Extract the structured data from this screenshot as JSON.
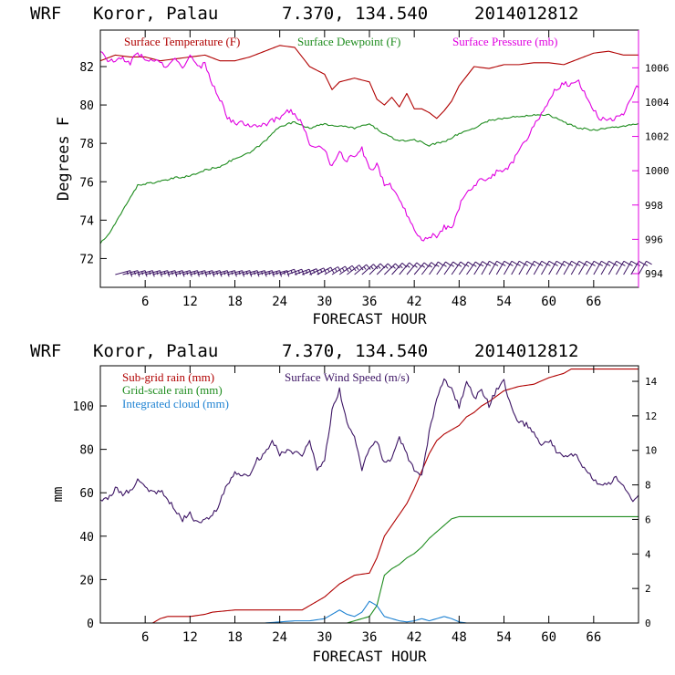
{
  "page": {
    "panel1_header": {
      "model": "WRF",
      "location": "Koror, Palau",
      "coords": "7.370, 134.540",
      "run": "2014012812"
    },
    "panel2_header": {
      "model": "WRF",
      "location": "Koror, Palau",
      "coords": "7.370, 134.540",
      "run": "2014012812"
    }
  },
  "chart_data": [
    {
      "type": "line",
      "xlabel": "FORECAST HOUR",
      "ylabel": "Degrees F",
      "xlim": [
        0,
        72
      ],
      "ylim": [
        70.5,
        83.9
      ],
      "y2lim": [
        993.2,
        1008.2
      ],
      "xticks": [
        6,
        12,
        18,
        24,
        30,
        36,
        42,
        48,
        54,
        60,
        66
      ],
      "xticklabels": [
        "6",
        "12",
        "18",
        "24",
        "30",
        "36",
        "42",
        "48",
        "54",
        "60",
        "66"
      ],
      "yticks": [
        72,
        74,
        76,
        78,
        80,
        82
      ],
      "yticklabels": [
        "72",
        "74",
        "76",
        "78",
        "80",
        "82"
      ],
      "y2ticks": [
        994,
        996,
        998,
        1000,
        1002,
        1004,
        1006
      ],
      "y2ticklabels": [
        "994",
        "996",
        "998",
        "1000",
        "1002",
        "1004",
        "1006"
      ],
      "legend": [
        "Surface Temperature (F)",
        "Surface Dewpoint (F)",
        "Surface Pressure (mb)"
      ],
      "colors": {
        "temp": "#b00000",
        "dew": "#1e8c1e",
        "pres": "#e000e0",
        "barb": "#3c1464",
        "axis": "#000000",
        "frame": "#e000e0"
      },
      "series": [
        {
          "name": "Surface Temperature (F)",
          "color": "#b00000",
          "axis": "left",
          "x": [
            0,
            2,
            4,
            6,
            8,
            10,
            12,
            14,
            16,
            18,
            20,
            22,
            24,
            26,
            28,
            30,
            31,
            32,
            34,
            36,
            37,
            38,
            39,
            40,
            41,
            42,
            43,
            44,
            45,
            46,
            47,
            48,
            50,
            52,
            54,
            56,
            58,
            60,
            62,
            64,
            66,
            68,
            70,
            72
          ],
          "values": [
            82.3,
            82.6,
            82.5,
            82.5,
            82.3,
            82.4,
            82.5,
            82.6,
            82.3,
            82.3,
            82.5,
            82.8,
            83.1,
            83.0,
            82.0,
            81.6,
            80.8,
            81.2,
            81.4,
            81.2,
            80.3,
            80.0,
            80.4,
            79.9,
            80.6,
            79.8,
            79.8,
            79.6,
            79.3,
            79.7,
            80.2,
            81.0,
            82.0,
            81.9,
            82.1,
            82.1,
            82.2,
            82.2,
            82.1,
            82.4,
            82.7,
            82.8,
            82.6,
            82.6
          ]
        },
        {
          "name": "Surface Dewpoint (F)",
          "color": "#1e8c1e",
          "axis": "left",
          "x": [
            0,
            1,
            2,
            3,
            4,
            5,
            6,
            8,
            10,
            12,
            14,
            16,
            18,
            20,
            22,
            24,
            26,
            28,
            30,
            32,
            34,
            36,
            38,
            40,
            42,
            44,
            46,
            48,
            50,
            52,
            54,
            56,
            58,
            60,
            62,
            64,
            66,
            68,
            70,
            72
          ],
          "values": [
            72.8,
            73.2,
            73.8,
            74.5,
            75.2,
            75.8,
            75.9,
            76.0,
            76.2,
            76.3,
            76.6,
            76.8,
            77.2,
            77.5,
            78.1,
            78.9,
            79.1,
            78.8,
            79.0,
            78.9,
            78.8,
            79.0,
            78.5,
            78.1,
            78.2,
            77.9,
            78.1,
            78.5,
            78.8,
            79.2,
            79.3,
            79.4,
            79.5,
            79.5,
            79.1,
            78.8,
            78.7,
            78.8,
            78.9,
            79.0
          ],
          "noise": 0.05
        },
        {
          "name": "Surface Pressure (mb)",
          "color": "#e000e0",
          "axis": "right",
          "x": [
            0,
            1,
            2,
            3,
            4,
            5,
            6,
            7,
            8,
            9,
            10,
            11,
            12,
            13,
            14,
            15,
            16,
            17,
            18,
            20,
            22,
            24,
            25,
            26,
            27,
            28,
            29,
            30,
            31,
            32,
            33,
            34,
            35,
            36,
            37,
            38,
            39,
            40,
            41,
            42,
            43,
            44,
            45,
            46,
            47,
            48,
            49,
            50,
            51,
            52,
            53,
            54,
            55,
            56,
            57,
            58,
            59,
            60,
            61,
            62,
            63,
            64,
            65,
            66,
            67,
            68,
            69,
            70,
            71,
            72
          ],
          "values": [
            1007.0,
            1006.4,
            1006.4,
            1006.5,
            1006.3,
            1006.9,
            1006.4,
            1006.5,
            1006.3,
            1006.0,
            1006.5,
            1006.1,
            1006.7,
            1006.0,
            1006.2,
            1005.1,
            1004.2,
            1003.1,
            1002.8,
            1002.7,
            1002.7,
            1003.1,
            1003.6,
            1003.3,
            1002.7,
            1001.6,
            1001.3,
            1001.3,
            1000.2,
            1001.0,
            1000.6,
            1000.9,
            1001.3,
            1000.0,
            1000.4,
            999.2,
            999.1,
            998.3,
            997.5,
            996.6,
            996.0,
            996.2,
            996.2,
            996.7,
            996.6,
            997.9,
            998.8,
            999.1,
            999.6,
            999.5,
            999.9,
            999.9,
            1000.4,
            1001.2,
            1001.8,
            1002.7,
            1003.3,
            1004.1,
            1004.8,
            1005.1,
            1005.0,
            1005.2,
            1004.4,
            1003.5,
            1003.0,
            1002.9,
            1003.1,
            1003.3,
            1004.3,
            1005.0
          ],
          "noise": 0.15
        }
      ],
      "wind_barbs": {
        "x": [
          2,
          3,
          4,
          5,
          6,
          7,
          8,
          9,
          10,
          11,
          12,
          13,
          14,
          15,
          16,
          17,
          18,
          19,
          20,
          21,
          22,
          23,
          24,
          25,
          26,
          27,
          28,
          29,
          30,
          31,
          32,
          33,
          34,
          35,
          36,
          37,
          38,
          39,
          40,
          41,
          42,
          43,
          44,
          45,
          46,
          47,
          48,
          49,
          50,
          51,
          52,
          53,
          54,
          55,
          56,
          57,
          58,
          59,
          60,
          61,
          62,
          63,
          64,
          65,
          66,
          67,
          68,
          69,
          70,
          71,
          72
        ],
        "direction_deg": [
          75,
          75,
          75,
          75,
          75,
          75,
          75,
          75,
          75,
          75,
          75,
          75,
          75,
          75,
          75,
          75,
          75,
          75,
          75,
          75,
          75,
          75,
          70,
          70,
          70,
          68,
          65,
          62,
          60,
          58,
          55,
          52,
          50,
          48,
          45,
          45,
          45,
          42,
          40,
          40,
          40,
          38,
          35,
          35,
          35,
          35,
          35,
          35,
          32,
          30,
          30,
          30,
          30,
          30,
          30,
          30,
          30,
          30,
          30,
          30,
          30,
          30,
          30,
          30,
          30,
          30,
          30,
          30,
          30,
          30,
          30
        ]
      }
    },
    {
      "type": "line",
      "xlabel": "FORECAST HOUR",
      "ylabel": "mm",
      "xlim": [
        0,
        72
      ],
      "ylim": [
        0,
        118.5
      ],
      "y2lim": [
        0,
        14.9
      ],
      "xticks": [
        6,
        12,
        18,
        24,
        30,
        36,
        42,
        48,
        54,
        60,
        66
      ],
      "xticklabels": [
        "6",
        "12",
        "18",
        "24",
        "30",
        "36",
        "42",
        "48",
        "54",
        "60",
        "66"
      ],
      "yticks": [
        0,
        20,
        40,
        60,
        80,
        100
      ],
      "yticklabels": [
        "0",
        "20",
        "40",
        "60",
        "80",
        "100"
      ],
      "y2ticks": [
        0,
        2,
        4,
        6,
        8,
        10,
        12,
        14
      ],
      "y2ticklabels": [
        "0",
        "2",
        "4",
        "6",
        "8",
        "10",
        "12",
        "14"
      ],
      "legend": [
        "Sub-grid rain (mm)",
        "Grid-scale rain (mm)",
        "Integrated cloud (mm)",
        "Surface Wind Speed (m/s)"
      ],
      "colors": {
        "subgrid": "#b00000",
        "gridscale": "#1e8c1e",
        "cloud": "#1e82d2",
        "wind": "#3c1464",
        "axis": "#000000"
      },
      "series": [
        {
          "name": "Sub-grid rain (mm)",
          "color": "#b00000",
          "axis": "left",
          "x": [
            0,
            7,
            8,
            9,
            12,
            14,
            15,
            18,
            27,
            29,
            30,
            32,
            34,
            36,
            37,
            38,
            39,
            40,
            41,
            42,
            43,
            44,
            45,
            46,
            47,
            48,
            49,
            50,
            51,
            52,
            54,
            56,
            58,
            60,
            62,
            63,
            64,
            66,
            68,
            70,
            72
          ],
          "values": [
            0,
            0,
            2,
            3,
            3,
            4,
            5,
            6,
            6,
            10,
            12,
            18,
            22,
            23,
            30,
            40,
            45,
            50,
            55,
            62,
            70,
            78,
            84,
            87,
            89,
            91,
            95,
            97,
            100,
            102,
            107,
            109,
            110,
            113,
            115,
            117,
            117,
            117,
            117,
            117,
            117
          ]
        },
        {
          "name": "Grid-scale rain (mm)",
          "color": "#1e8c1e",
          "axis": "left",
          "x": [
            0,
            33,
            35,
            36,
            37,
            38,
            39,
            40,
            41,
            42,
            43,
            44,
            45,
            46,
            47,
            48,
            72
          ],
          "values": [
            0,
            0,
            2,
            3,
            8,
            22,
            25,
            27,
            30,
            32,
            35,
            39,
            42,
            45,
            48,
            49,
            49
          ]
        },
        {
          "name": "Integrated cloud (mm)",
          "color": "#1e82d2",
          "axis": "left",
          "x": [
            0,
            22,
            24,
            26,
            28,
            30,
            31,
            32,
            33,
            34,
            35,
            36,
            37,
            38,
            39,
            40,
            41,
            42,
            43,
            44,
            45,
            46,
            47,
            48,
            49,
            72
          ],
          "values": [
            0,
            0,
            0.5,
            1,
            1,
            2,
            4,
            6,
            4,
            3,
            5,
            10,
            8,
            3,
            2,
            1,
            0.5,
            1,
            2,
            1,
            2,
            3,
            2,
            0.5,
            0,
            0
          ]
        },
        {
          "name": "Surface Wind Speed (m/s)",
          "color": "#3c1464",
          "axis": "right",
          "x": [
            0,
            1,
            2,
            3,
            4,
            5,
            6,
            7,
            8,
            9,
            10,
            11,
            12,
            13,
            14,
            15,
            16,
            17,
            18,
            19,
            20,
            21,
            22,
            23,
            24,
            25,
            26,
            27,
            28,
            29,
            30,
            31,
            32,
            33,
            34,
            35,
            36,
            37,
            38,
            39,
            40,
            41,
            42,
            43,
            44,
            45,
            46,
            47,
            48,
            49,
            50,
            51,
            52,
            53,
            54,
            55,
            56,
            57,
            58,
            59,
            60,
            61,
            62,
            63,
            64,
            65,
            66,
            67,
            68,
            69,
            70,
            71,
            72
          ],
          "values": [
            7.2,
            7.1,
            7.8,
            7.5,
            7.6,
            8.3,
            8.0,
            7.5,
            7.7,
            7.2,
            6.5,
            6.0,
            6.3,
            5.8,
            6.0,
            6.2,
            7.0,
            8.0,
            8.7,
            8.5,
            8.7,
            9.5,
            9.8,
            10.5,
            9.8,
            10.0,
            9.9,
            9.8,
            10.7,
            8.8,
            9.5,
            12.3,
            13.5,
            11.5,
            10.8,
            8.9,
            10.2,
            10.5,
            9.2,
            9.5,
            10.8,
            9.8,
            8.8,
            8.5,
            11.0,
            13.0,
            14.2,
            13.5,
            12.5,
            14.0,
            13.0,
            13.5,
            12.6,
            13.5,
            14.0,
            12.5,
            11.6,
            11.5,
            11.0,
            10.3,
            10.6,
            10.0,
            9.6,
            9.8,
            9.5,
            8.8,
            8.3,
            8.0,
            8.0,
            8.5,
            7.9,
            7.1,
            7.4
          ],
          "noise": 0.15
        }
      ]
    }
  ]
}
